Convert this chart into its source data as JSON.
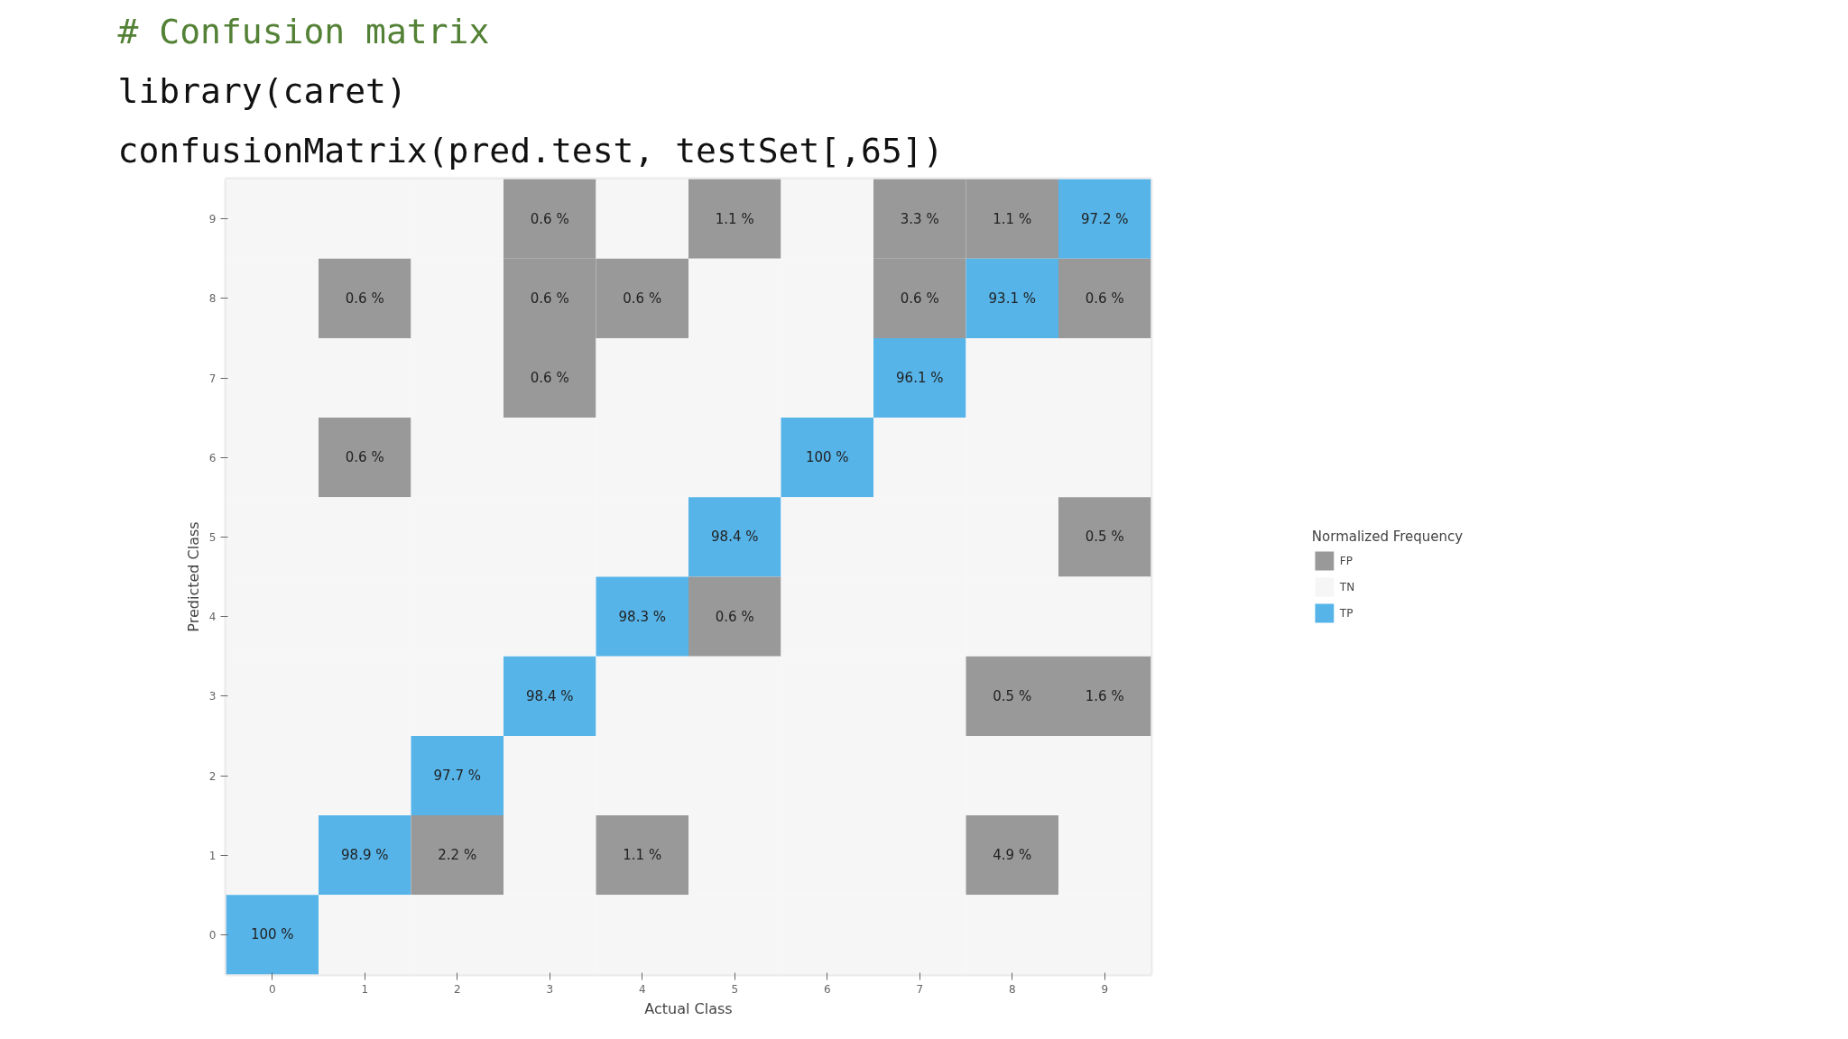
{
  "chart_data": {
    "type": "heatmap",
    "title": "# Confusion matrix",
    "annotations": [
      "library(caret)",
      "confusionMatrix(pred.test, testSet[,65])"
    ],
    "xlabel": "Actual Class",
    "ylabel": "Predicted Class",
    "legend_title": "Normalized Frequency",
    "legend": "right",
    "categories": [
      "0",
      "1",
      "2",
      "3",
      "4",
      "5",
      "6",
      "7",
      "8",
      "9"
    ],
    "y_categories": [
      "9",
      "8",
      "7",
      "6",
      "5",
      "4",
      "3",
      "2",
      "1",
      "0"
    ],
    "series": [
      {
        "name": "FP",
        "color": "#999999",
        "values": [
          null,
          null,
          null,
          null,
          null,
          null,
          null,
          null,
          null,
          null
        ]
      },
      {
        "name": "TN",
        "color": "#f6f6f6",
        "values": [
          null,
          null,
          null,
          null,
          null,
          null,
          null,
          null,
          null,
          null
        ]
      },
      {
        "name": "TP",
        "color": "#56b4e9",
        "values": [
          null,
          null,
          null,
          null,
          null,
          null,
          null,
          null,
          null,
          null
        ]
      }
    ],
    "cells": [
      [
        null,
        null,
        null,
        0.6,
        null,
        1.1,
        null,
        3.3,
        1.1,
        97.2
      ],
      [
        null,
        0.6,
        null,
        0.6,
        0.6,
        null,
        null,
        0.6,
        93.1,
        0.6
      ],
      [
        null,
        null,
        null,
        0.6,
        null,
        null,
        null,
        96.1,
        null,
        null
      ],
      [
        null,
        0.6,
        null,
        null,
        null,
        null,
        100,
        null,
        null,
        null
      ],
      [
        null,
        null,
        null,
        null,
        null,
        98.4,
        null,
        null,
        null,
        0.5
      ],
      [
        null,
        null,
        null,
        null,
        98.3,
        0.6,
        null,
        null,
        null,
        null
      ],
      [
        null,
        null,
        null,
        98.4,
        null,
        null,
        null,
        null,
        0.5,
        1.6
      ],
      [
        null,
        null,
        97.7,
        null,
        null,
        null,
        null,
        null,
        null,
        null
      ],
      [
        null,
        98.9,
        2.2,
        null,
        1.1,
        null,
        null,
        null,
        4.9,
        null
      ],
      [
        100,
        null,
        null,
        null,
        null,
        null,
        null,
        null,
        null,
        null
      ]
    ],
    "cell_labels": [
      [
        null,
        null,
        null,
        "0.6 %",
        null,
        "1.1 %",
        null,
        "3.3 %",
        "1.1 %",
        "97.2 %"
      ],
      [
        null,
        "0.6 %",
        null,
        "0.6 %",
        "0.6 %",
        null,
        null,
        "0.6 %",
        "93.1 %",
        "0.6 %"
      ],
      [
        null,
        null,
        null,
        "0.6 %",
        null,
        null,
        null,
        "96.1 %",
        null,
        null
      ],
      [
        null,
        "0.6 %",
        null,
        null,
        null,
        null,
        "100 %",
        null,
        null,
        null
      ],
      [
        null,
        null,
        null,
        null,
        null,
        "98.4 %",
        null,
        null,
        null,
        "0.5 %"
      ],
      [
        null,
        null,
        null,
        null,
        "98.3 %",
        "0.6 %",
        null,
        null,
        null,
        null
      ],
      [
        null,
        null,
        null,
        "98.4 %",
        null,
        null,
        null,
        null,
        "0.5 %",
        "1.6 %"
      ],
      [
        null,
        null,
        "97.7 %",
        null,
        null,
        null,
        null,
        null,
        null,
        null
      ],
      [
        null,
        "98.9 %",
        "2.2 %",
        null,
        "1.1 %",
        null,
        null,
        null,
        "4.9 %",
        null
      ],
      [
        "100 %",
        null,
        null,
        null,
        null,
        null,
        null,
        null,
        null,
        null
      ]
    ]
  }
}
